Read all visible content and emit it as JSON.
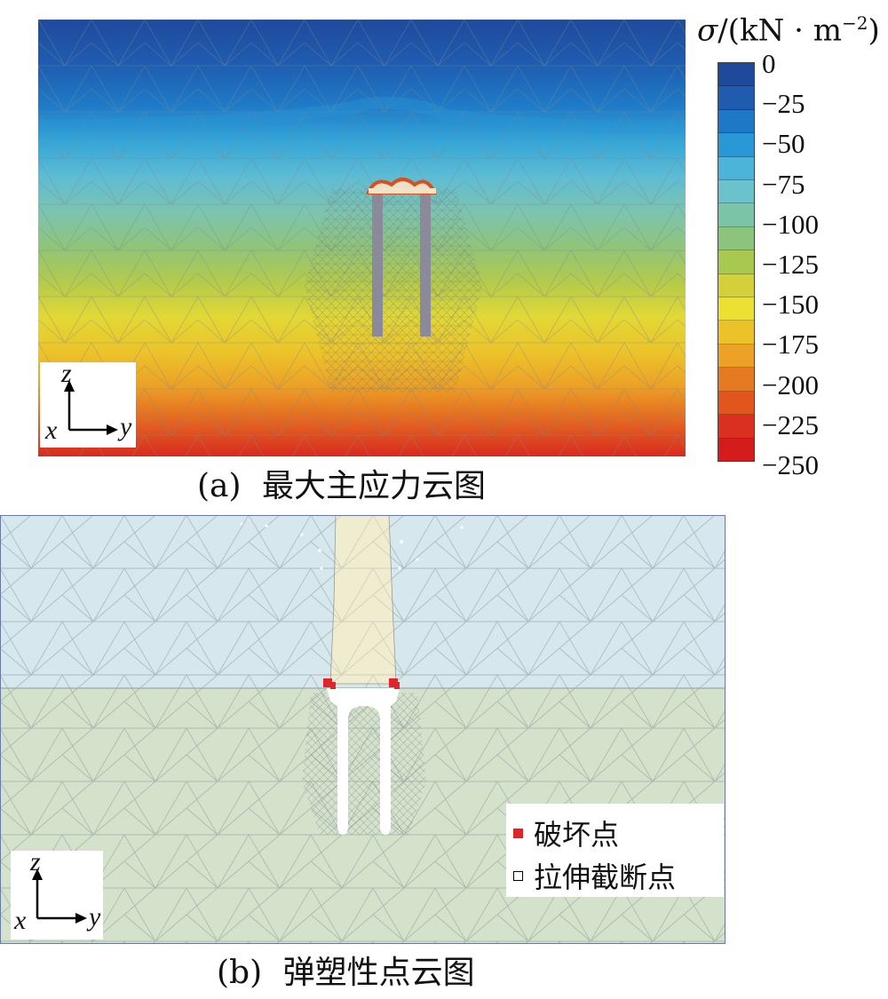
{
  "panel_a": {
    "caption_label": "(a)",
    "caption_text": "最大主应力云图",
    "legend_title_prefix": "σ",
    "legend_title_unit": "/(kN · m",
    "legend_title_exp": "−2",
    "legend_title_close": ")",
    "colorbar_colors": [
      "#1f4a9c",
      "#1f5cb0",
      "#1f78c6",
      "#2a98d6",
      "#4bb4d8",
      "#6cc2cc",
      "#7cc4a8",
      "#8cc47e",
      "#a8c850",
      "#d4d03a",
      "#ece032",
      "#ecc22a",
      "#eca226",
      "#e67a22",
      "#e2561e",
      "#da3020",
      "#d41c1c"
    ],
    "ticks": [
      "0",
      "−25",
      "−50",
      "−75",
      "−100",
      "−125",
      "−150",
      "−175",
      "−200",
      "−225",
      "−250"
    ],
    "axis": {
      "z": "z",
      "x": "x",
      "y": "y"
    }
  },
  "panel_b": {
    "caption_label": "(b)",
    "caption_text": "弹塑性点云图",
    "legend": [
      {
        "label": "破坏点",
        "color": "#e0242a"
      },
      {
        "label": "拉伸截断点",
        "color": "#ffffff"
      }
    ],
    "axis": {
      "z": "z",
      "x": "x",
      "y": "y"
    }
  }
}
